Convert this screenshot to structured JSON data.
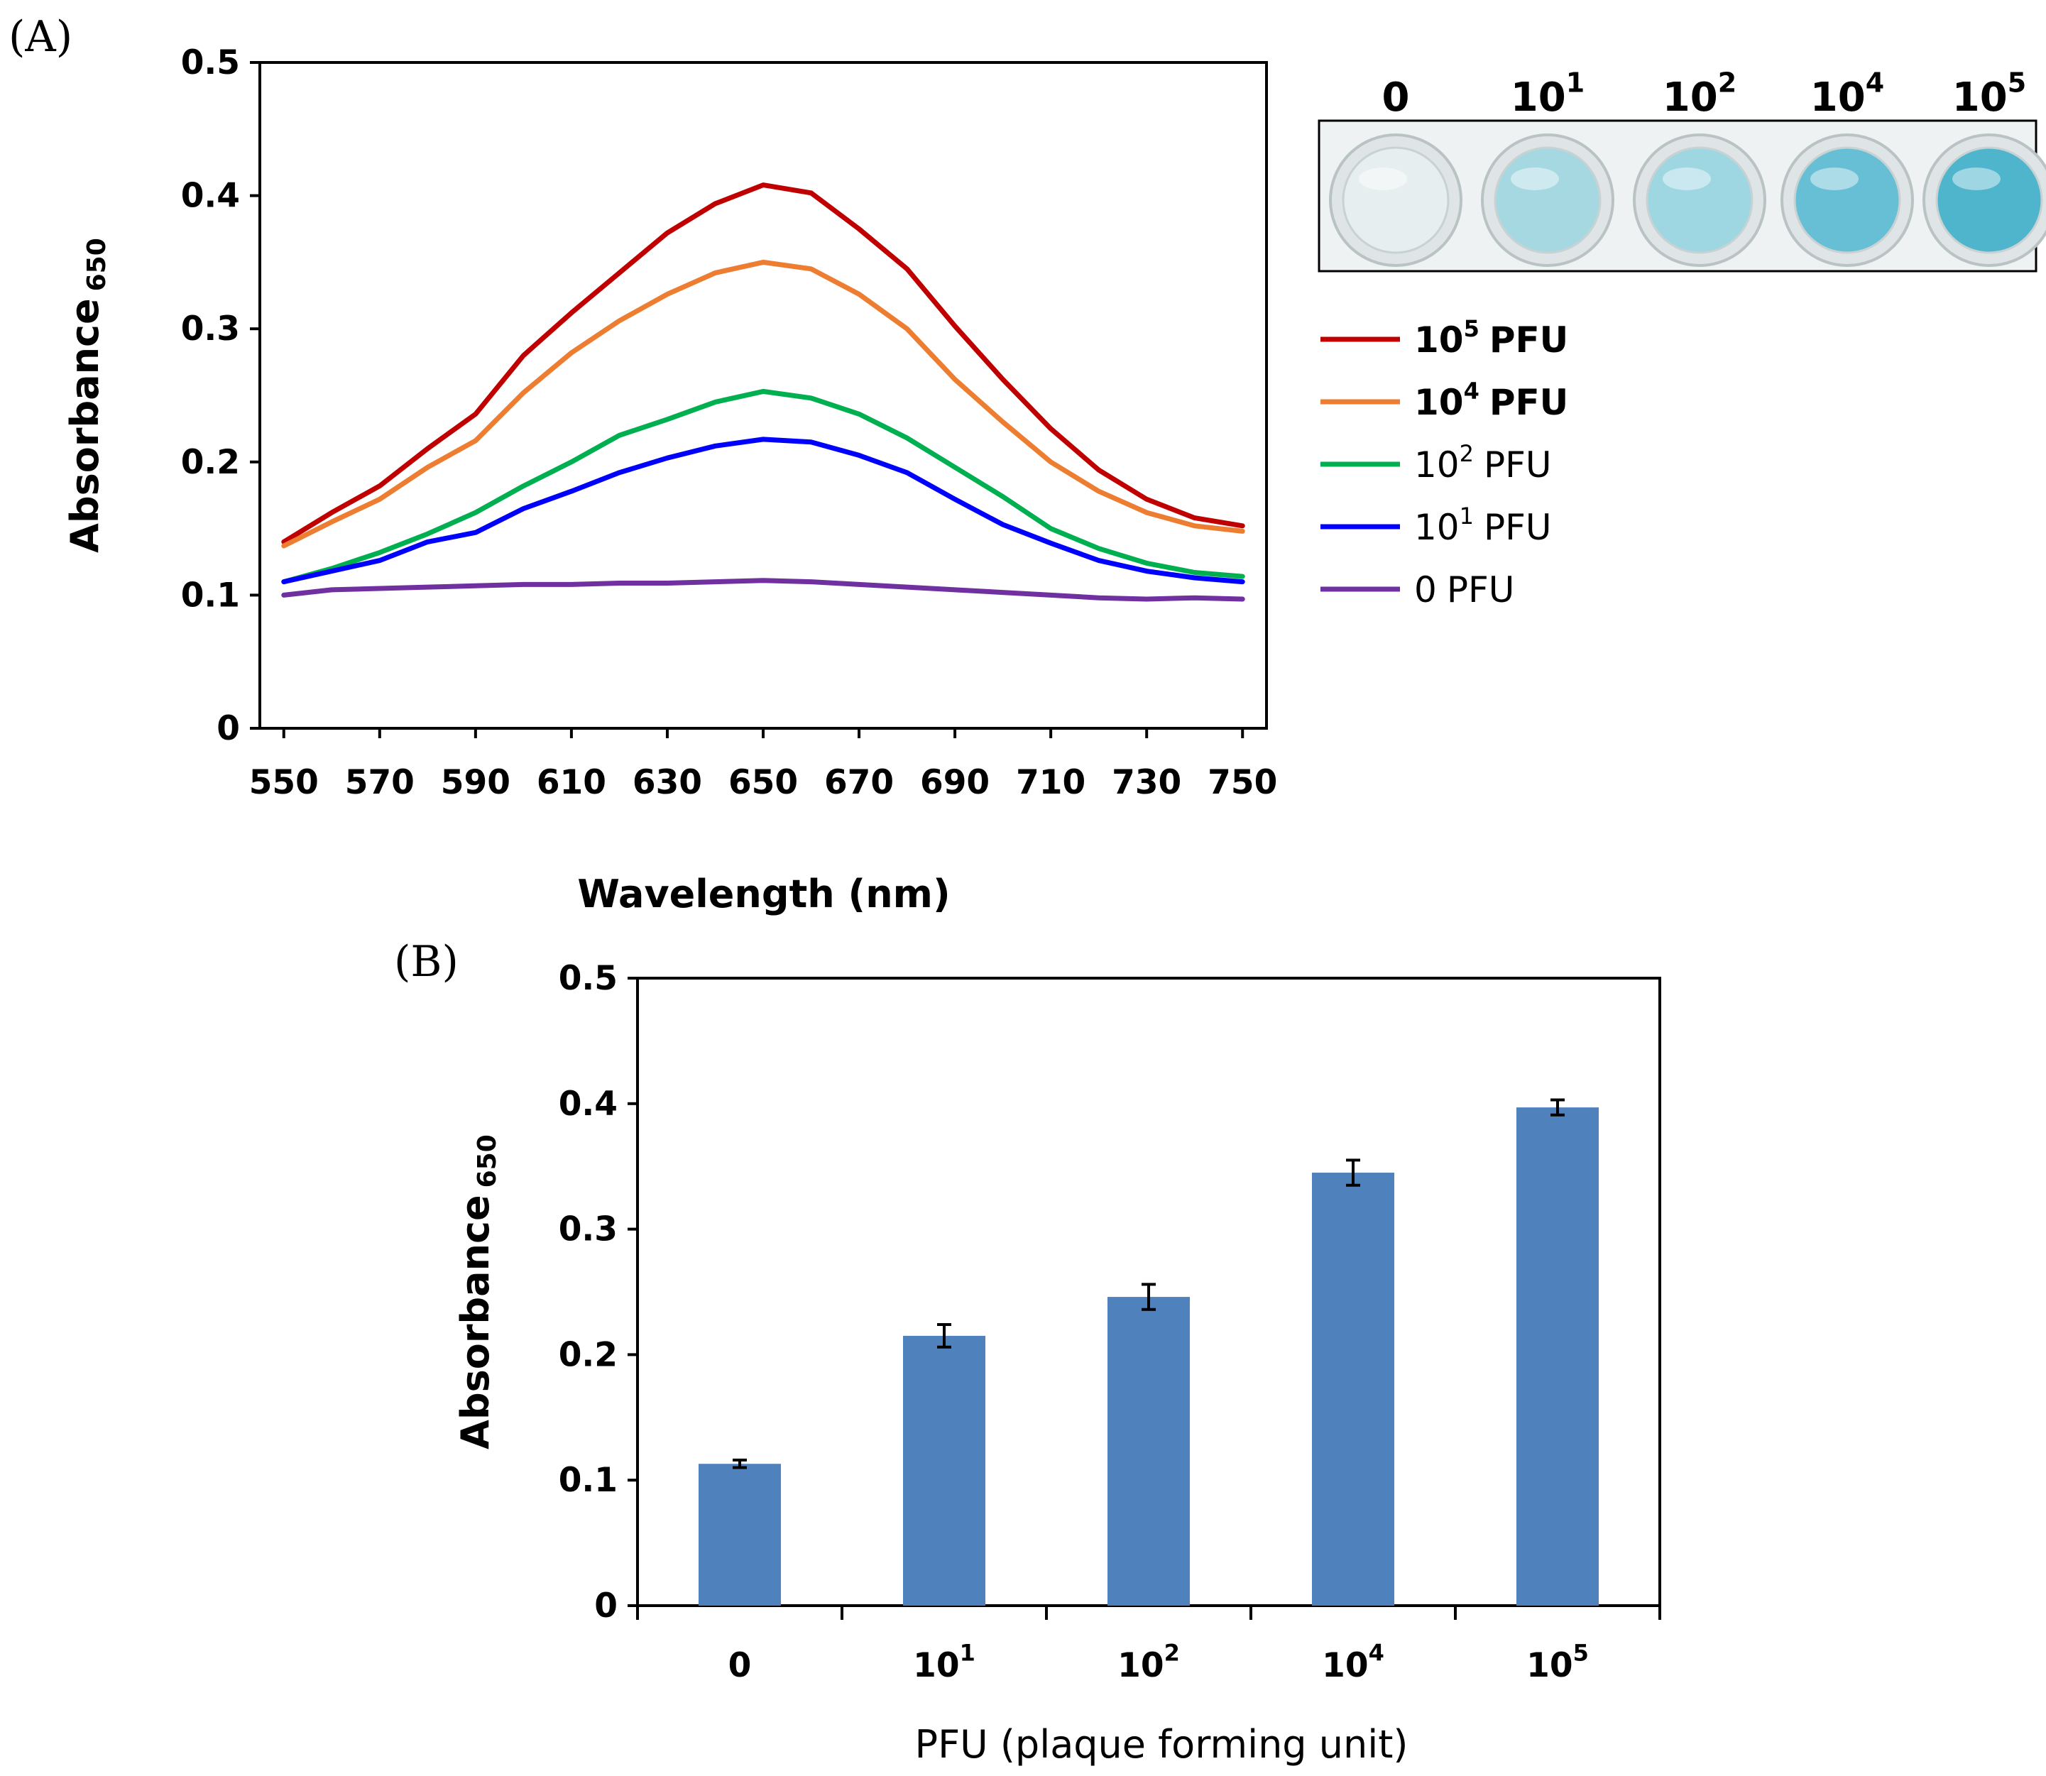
{
  "chart_data": [
    {
      "panel": "(A)",
      "type": "line",
      "xlabel": "Wavelength (nm)",
      "ylabel": "Absorbance",
      "ylabel_sub": "650",
      "xlim": [
        545,
        755
      ],
      "ylim": [
        0,
        0.5
      ],
      "xticks": [
        550,
        570,
        590,
        610,
        630,
        650,
        670,
        690,
        710,
        730,
        750
      ],
      "yticks": [
        "0",
        "0.1",
        "0.2",
        "0.3",
        "0.4",
        "0.5"
      ],
      "x": [
        550,
        560,
        570,
        580,
        590,
        600,
        610,
        620,
        630,
        640,
        650,
        660,
        670,
        680,
        690,
        700,
        710,
        720,
        730,
        740,
        750
      ],
      "series": [
        {
          "name": "10",
          "sup": "5",
          "unit": "PFU",
          "bold": true,
          "color": "#c00000",
          "values": [
            0.14,
            0.162,
            0.182,
            0.21,
            0.236,
            0.28,
            0.312,
            0.342,
            0.372,
            0.394,
            0.408,
            0.402,
            0.375,
            0.345,
            0.302,
            0.262,
            0.225,
            0.194,
            0.172,
            0.158,
            0.152
          ]
        },
        {
          "name": "10",
          "sup": "4",
          "unit": "PFU",
          "bold": true,
          "color": "#ed7d31",
          "values": [
            0.137,
            0.155,
            0.172,
            0.196,
            0.216,
            0.252,
            0.282,
            0.306,
            0.326,
            0.342,
            0.35,
            0.345,
            0.326,
            0.3,
            0.262,
            0.23,
            0.2,
            0.178,
            0.162,
            0.152,
            0.148
          ]
        },
        {
          "name": "10",
          "sup": "2",
          "unit": "PFU",
          "bold": false,
          "color": "#00b050",
          "values": [
            0.11,
            0.12,
            0.132,
            0.146,
            0.162,
            0.182,
            0.2,
            0.22,
            0.232,
            0.245,
            0.253,
            0.248,
            0.236,
            0.218,
            0.196,
            0.174,
            0.15,
            0.135,
            0.124,
            0.117,
            0.114
          ]
        },
        {
          "name": "10",
          "sup": "1",
          "unit": "PFU",
          "bold": false,
          "color": "#0000ff",
          "values": [
            0.11,
            0.118,
            0.126,
            0.14,
            0.147,
            0.165,
            0.178,
            0.192,
            0.203,
            0.212,
            0.217,
            0.215,
            0.205,
            0.192,
            0.172,
            0.153,
            0.139,
            0.126,
            0.118,
            0.113,
            0.11
          ]
        },
        {
          "name": "0",
          "sup": "",
          "unit": "PFU",
          "bold": false,
          "color": "#7030a0",
          "values": [
            0.1,
            0.104,
            0.105,
            0.106,
            0.107,
            0.108,
            0.108,
            0.109,
            0.109,
            0.11,
            0.111,
            0.11,
            0.108,
            0.106,
            0.104,
            0.102,
            0.1,
            0.098,
            0.097,
            0.098,
            0.097
          ]
        }
      ],
      "inset_wells": [
        {
          "label": "0",
          "sup": "",
          "color": "#e7eeef"
        },
        {
          "label": "10",
          "sup": "1",
          "color": "#a6d8e2"
        },
        {
          "label": "10",
          "sup": "2",
          "color": "#9ed6e2"
        },
        {
          "label": "10",
          "sup": "4",
          "color": "#66bfd4"
        },
        {
          "label": "10",
          "sup": "5",
          "color": "#4fb5cd"
        }
      ]
    },
    {
      "panel": "(B)",
      "type": "bar",
      "xlabel": "PFU (plaque forming unit)",
      "ylabel": "Absorbance",
      "ylabel_sub": "650",
      "ylim": [
        0,
        0.5
      ],
      "yticks": [
        "0",
        "0.1",
        "0.2",
        "0.3",
        "0.4",
        "0.5"
      ],
      "categories": [
        {
          "label": "0",
          "sup": ""
        },
        {
          "label": "10",
          "sup": "1"
        },
        {
          "label": "10",
          "sup": "2"
        },
        {
          "label": "10",
          "sup": "4"
        },
        {
          "label": "10",
          "sup": "5"
        }
      ],
      "values": [
        0.113,
        0.215,
        0.246,
        0.345,
        0.397
      ],
      "errors": [
        0.003,
        0.009,
        0.01,
        0.01,
        0.006
      ],
      "bar_color": "#4f81bd"
    }
  ]
}
